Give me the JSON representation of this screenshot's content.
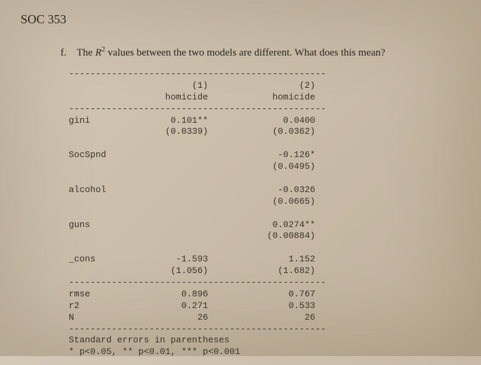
{
  "course": "SOC 353",
  "question": {
    "letter": "f.",
    "text_before": "The ",
    "symbol": "R",
    "sup": "2",
    "text_after": " values between the two models are different. What does this mean?"
  },
  "table": {
    "dash_top": "------------------------------------------------",
    "dash_hdr": "------------------------------------------------",
    "dash_mid": "------------------------------------------------",
    "dash_bot": "------------------------------------------------",
    "col_headers": {
      "c1_num": "(1)",
      "c1_lbl": "homicide",
      "c2_num": "(2)",
      "c2_lbl": "homicide"
    },
    "rows": [
      {
        "name": "gini",
        "c1": "0.101**",
        "c1_se": "(0.0339)",
        "c2": "0.0400",
        "c2_se": "(0.0362)"
      },
      {
        "name": "SocSpnd",
        "c1": "",
        "c1_se": "",
        "c2": "-0.126*",
        "c2_se": "(0.0495)"
      },
      {
        "name": "alcohol",
        "c1": "",
        "c1_se": "",
        "c2": "-0.0326",
        "c2_se": "(0.0665)"
      },
      {
        "name": "guns",
        "c1": "",
        "c1_se": "",
        "c2": "0.0274**",
        "c2_se": "(0.00884)"
      },
      {
        "name": "_cons",
        "c1": "-1.593",
        "c1_se": "(1.056)",
        "c2": "1.152",
        "c2_se": "(1.682)"
      }
    ],
    "stats": [
      {
        "name": "rmse",
        "c1": "0.896",
        "c2": "0.767"
      },
      {
        "name": "r2",
        "c1": "0.271",
        "c2": "0.533"
      },
      {
        "name": "N",
        "c1": "26",
        "c2": "26"
      }
    ],
    "footer_l1": "Standard errors in parentheses",
    "footer_l2": "* p<0.05, ** p<0.01, *** p<0.001"
  },
  "style": {
    "background_gradient": [
      "#d4c8b8",
      "#c9bca8",
      "#beb09a"
    ],
    "text_color": "#2a2520",
    "mono_color": "#3a332a",
    "body_font": "Georgia",
    "mono_font": "Courier New",
    "course_fontsize": 18,
    "question_fontsize": 15,
    "table_fontsize": 13,
    "col_width_name": 10,
    "col_width_val": 16
  }
}
